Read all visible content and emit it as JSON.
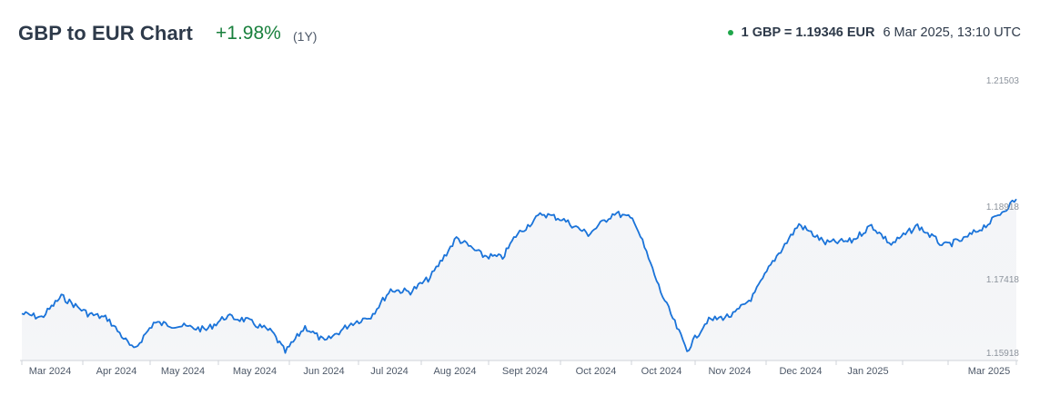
{
  "header": {
    "title": "GBP to EUR Chart",
    "change": "+1.98%",
    "period": "(1Y)",
    "rate_label": "1 GBP = 1.19346 EUR",
    "timestamp": "6 Mar 2025, 13:10 UTC"
  },
  "colors": {
    "line": "#1a73d9",
    "positive": "#19803d",
    "live_dot": "#1fa64a"
  },
  "chart_data": {
    "type": "line",
    "title": "GBP to EUR Chart",
    "xlabel": "",
    "ylabel": "",
    "x_tick_labels": [
      "Mar 2024",
      "Apr 2024",
      "May 2024",
      "May 2024",
      "Jun 2024",
      "Jul 2024",
      "Aug 2024",
      "Sept 2024",
      "Oct 2024",
      "Oct 2024",
      "Nov 2024",
      "Dec 2024",
      "Jan 2025",
      "Mar 2025"
    ],
    "y_tick_labels": [
      "1.21503",
      "1.18918",
      "1.17418",
      "1.15918"
    ],
    "y_ticks": [
      1.21503,
      1.18918,
      1.17418,
      1.15918
    ],
    "ylim": [
      1.15918,
      1.21503
    ],
    "grid": false,
    "legend": "none",
    "series": [
      {
        "x": [
          0,
          0.3,
          0.6,
          1.0,
          1.3,
          1.7,
          2.0,
          2.4,
          2.8,
          3.1,
          3.4,
          3.8,
          4.0,
          4.3,
          4.6,
          5.0,
          5.3,
          5.6,
          5.9,
          6.2,
          6.6,
          7.0,
          7.3,
          7.5,
          7.9,
          8.2,
          8.6,
          9.0,
          9.3,
          9.7,
          10.1,
          10.4,
          10.8,
          11.1,
          11.4,
          11.8,
          12.2,
          12.6,
          12.9,
          13.2,
          13.6,
          14.0,
          14.3,
          14.7,
          15.1
        ],
        "values": [
          1.1673,
          1.1665,
          1.1708,
          1.1673,
          1.1663,
          1.1598,
          1.1654,
          1.1648,
          1.164,
          1.1667,
          1.166,
          1.1635,
          1.1594,
          1.1646,
          1.1615,
          1.1653,
          1.1668,
          1.1722,
          1.1718,
          1.1747,
          1.1828,
          1.1792,
          1.1788,
          1.1833,
          1.1878,
          1.1867,
          1.1836,
          1.188,
          1.1865,
          1.1718,
          1.1598,
          1.1658,
          1.167,
          1.1708,
          1.1779,
          1.1856,
          1.1818,
          1.1822,
          1.1854,
          1.1815,
          1.1853,
          1.1812,
          1.1825,
          1.186,
          1.1908
        ]
      }
    ]
  }
}
